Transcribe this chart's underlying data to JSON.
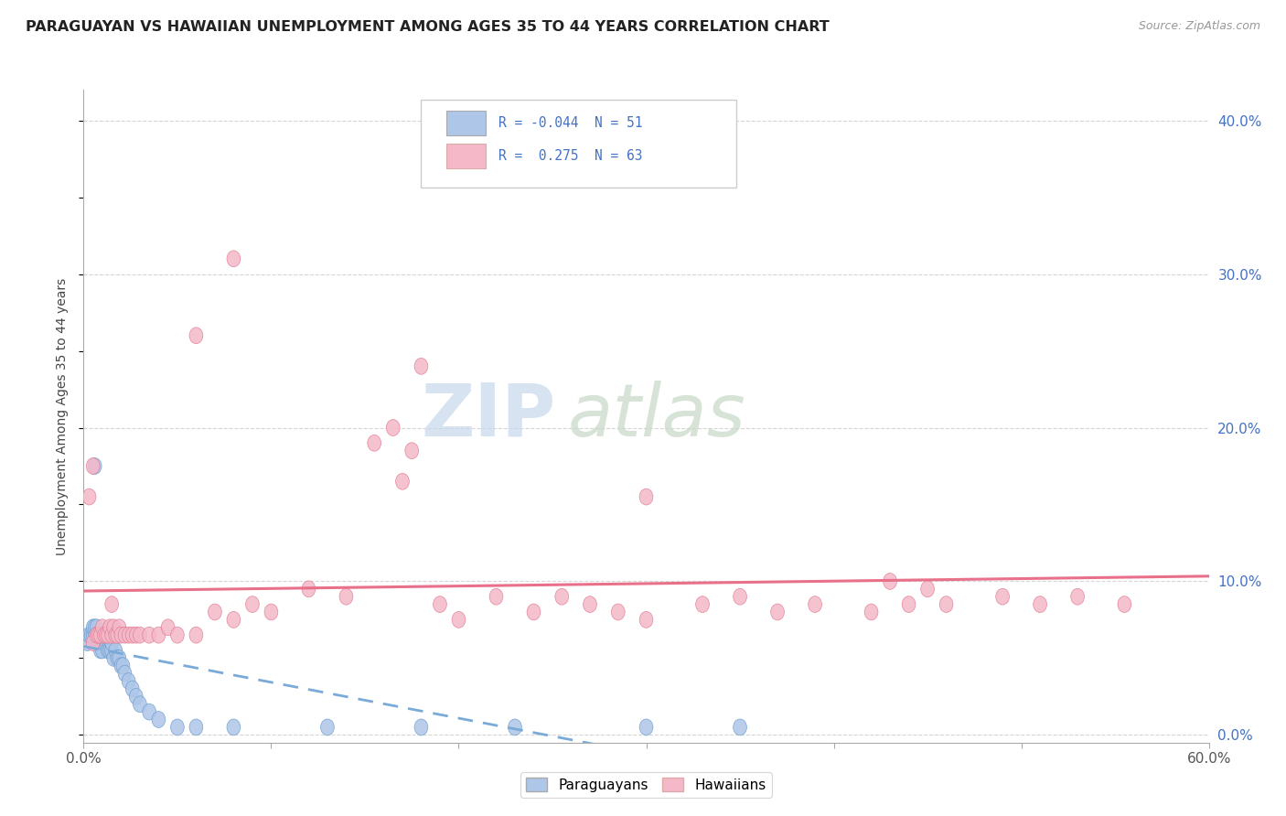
{
  "title": "PARAGUAYAN VS HAWAIIAN UNEMPLOYMENT AMONG AGES 35 TO 44 YEARS CORRELATION CHART",
  "source": "Source: ZipAtlas.com",
  "ylabel": "Unemployment Among Ages 35 to 44 years",
  "legend_paraguayan_R": "-0.044",
  "legend_paraguayan_N": "51",
  "legend_hawaiian_R": "0.275",
  "legend_hawaiian_N": "63",
  "paraguayan_color": "#aec6e8",
  "paraguayan_edge": "#6699cc",
  "hawaiian_color": "#f4b8c8",
  "hawaiian_edge": "#e07890",
  "trendline_paraguayan_color": "#7aaad8",
  "trendline_hawaiian_color": "#e8708a",
  "watermark_zip_color": "#cdd8e8",
  "watermark_atlas_color": "#c8d8c8",
  "background_color": "#ffffff",
  "grid_color": "#cccccc",
  "xmin": 0.0,
  "xmax": 0.6,
  "ymin": -0.005,
  "ymax": 0.42,
  "right_yticks": [
    0.0,
    0.1,
    0.2,
    0.3,
    0.4
  ],
  "right_yticklabels": [
    "0.0%",
    "10.0%",
    "20.0%",
    "30.0%",
    "40.0%"
  ],
  "paraguayan_x": [
    0.002,
    0.003,
    0.004,
    0.005,
    0.005,
    0.006,
    0.006,
    0.007,
    0.007,
    0.007,
    0.008,
    0.008,
    0.008,
    0.009,
    0.009,
    0.009,
    0.01,
    0.01,
    0.01,
    0.011,
    0.011,
    0.012,
    0.012,
    0.013,
    0.013,
    0.014,
    0.014,
    0.015,
    0.015,
    0.016,
    0.017,
    0.018,
    0.019,
    0.02,
    0.021,
    0.022,
    0.024,
    0.026,
    0.028,
    0.03,
    0.035,
    0.04,
    0.05,
    0.06,
    0.08,
    0.13,
    0.18,
    0.23,
    0.3,
    0.35,
    0.006
  ],
  "paraguayan_y": [
    0.06,
    0.065,
    0.065,
    0.065,
    0.07,
    0.065,
    0.07,
    0.07,
    0.065,
    0.06,
    0.06,
    0.065,
    0.06,
    0.065,
    0.06,
    0.055,
    0.06,
    0.065,
    0.055,
    0.065,
    0.06,
    0.06,
    0.065,
    0.06,
    0.055,
    0.06,
    0.055,
    0.055,
    0.06,
    0.05,
    0.055,
    0.05,
    0.05,
    0.045,
    0.045,
    0.04,
    0.035,
    0.03,
    0.025,
    0.02,
    0.015,
    0.01,
    0.005,
    0.005,
    0.005,
    0.005,
    0.005,
    0.005,
    0.005,
    0.005,
    0.175
  ],
  "hawaiian_x": [
    0.003,
    0.005,
    0.007,
    0.008,
    0.009,
    0.01,
    0.011,
    0.012,
    0.013,
    0.014,
    0.015,
    0.016,
    0.017,
    0.018,
    0.019,
    0.02,
    0.022,
    0.024,
    0.026,
    0.028,
    0.03,
    0.035,
    0.04,
    0.045,
    0.05,
    0.06,
    0.07,
    0.08,
    0.09,
    0.1,
    0.12,
    0.14,
    0.155,
    0.165,
    0.175,
    0.19,
    0.2,
    0.22,
    0.24,
    0.255,
    0.27,
    0.285,
    0.3,
    0.33,
    0.35,
    0.37,
    0.39,
    0.42,
    0.44,
    0.46,
    0.49,
    0.51,
    0.53,
    0.555,
    0.015,
    0.06,
    0.08,
    0.17,
    0.3,
    0.43,
    0.45,
    0.18,
    0.005
  ],
  "hawaiian_y": [
    0.155,
    0.06,
    0.065,
    0.065,
    0.065,
    0.07,
    0.065,
    0.065,
    0.065,
    0.07,
    0.065,
    0.07,
    0.065,
    0.065,
    0.07,
    0.065,
    0.065,
    0.065,
    0.065,
    0.065,
    0.065,
    0.065,
    0.065,
    0.07,
    0.065,
    0.065,
    0.08,
    0.075,
    0.085,
    0.08,
    0.095,
    0.09,
    0.19,
    0.2,
    0.185,
    0.085,
    0.075,
    0.09,
    0.08,
    0.09,
    0.085,
    0.08,
    0.075,
    0.085,
    0.09,
    0.08,
    0.085,
    0.08,
    0.085,
    0.085,
    0.09,
    0.085,
    0.09,
    0.085,
    0.085,
    0.26,
    0.31,
    0.165,
    0.155,
    0.1,
    0.095,
    0.24,
    0.175
  ]
}
